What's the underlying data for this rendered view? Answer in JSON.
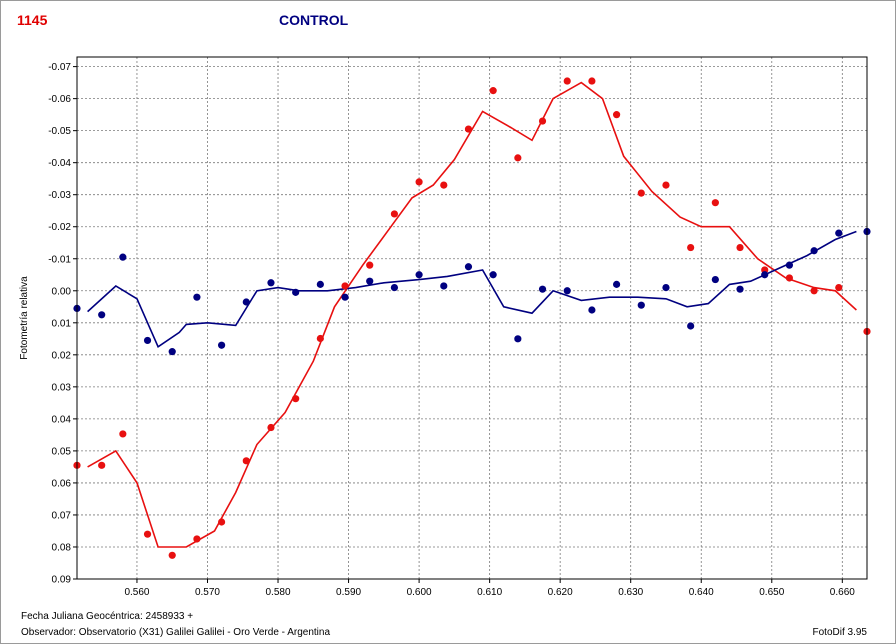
{
  "header": {
    "object_id": "1145",
    "mode": "CONTROL"
  },
  "footer": {
    "jd_label": "Fecha Juliana Geocéntrica: 2458933 +",
    "observer": "Observador: Observatorio (X31) Galilei Galilei - Oro Verde - Argentina",
    "software": "FotoDif 3.95"
  },
  "colors": {
    "target": "#e81010",
    "control": "#000080",
    "grid": "#7a7a7a"
  },
  "chart_data": {
    "type": "scatter",
    "ylabel": "Fotometría relativa",
    "xlim": [
      0.5515,
      0.6635
    ],
    "ylim": [
      -0.073,
      0.09
    ],
    "y_inverted": true,
    "grid": true,
    "xticks": [
      {
        "v": 0.56,
        "label": "0.560"
      },
      {
        "v": 0.57,
        "label": "0.570"
      },
      {
        "v": 0.58,
        "label": "0.580"
      },
      {
        "v": 0.59,
        "label": "0.590"
      },
      {
        "v": 0.6,
        "label": "0.600"
      },
      {
        "v": 0.61,
        "label": "0.610"
      },
      {
        "v": 0.62,
        "label": "0.620"
      },
      {
        "v": 0.63,
        "label": "0.630"
      },
      {
        "v": 0.64,
        "label": "0.640"
      },
      {
        "v": 0.65,
        "label": "0.650"
      },
      {
        "v": 0.66,
        "label": "0.660"
      }
    ],
    "yticks": [
      {
        "v": -0.07,
        "label": "-0.07"
      },
      {
        "v": -0.06,
        "label": "-0.06"
      },
      {
        "v": -0.05,
        "label": "-0.05"
      },
      {
        "v": -0.04,
        "label": "-0.04"
      },
      {
        "v": -0.03,
        "label": "-0.03"
      },
      {
        "v": -0.02,
        "label": "-0.02"
      },
      {
        "v": -0.01,
        "label": "-0.01"
      },
      {
        "v": 0.0,
        "label": "0.00"
      },
      {
        "v": 0.01,
        "label": "0.01"
      },
      {
        "v": 0.02,
        "label": "0.02"
      },
      {
        "v": 0.03,
        "label": "0.03"
      },
      {
        "v": 0.04,
        "label": "0.04"
      },
      {
        "v": 0.05,
        "label": "0.05"
      },
      {
        "v": 0.06,
        "label": "0.06"
      },
      {
        "v": 0.07,
        "label": "0.07"
      },
      {
        "v": 0.08,
        "label": "0.08"
      },
      {
        "v": 0.09,
        "label": "0.09"
      }
    ],
    "series": [
      {
        "color": "#e81010",
        "points": [
          [
            0.5515,
            0.0545
          ],
          [
            0.555,
            0.0545
          ],
          [
            0.558,
            0.0447
          ],
          [
            0.5615,
            0.076
          ],
          [
            0.565,
            0.0826
          ],
          [
            0.5685,
            0.0775
          ],
          [
            0.572,
            0.0722
          ],
          [
            0.5755,
            0.0531
          ],
          [
            0.579,
            0.0427
          ],
          [
            0.5825,
            0.0337
          ],
          [
            0.586,
            0.0149
          ],
          [
            0.5895,
            -0.0015
          ],
          [
            0.593,
            -0.008
          ],
          [
            0.5965,
            -0.024
          ],
          [
            0.6,
            -0.034
          ],
          [
            0.6035,
            -0.033
          ],
          [
            0.607,
            -0.0505
          ],
          [
            0.6105,
            -0.0625
          ],
          [
            0.614,
            -0.0415
          ],
          [
            0.6175,
            -0.053
          ],
          [
            0.621,
            -0.0655
          ],
          [
            0.6245,
            -0.0655
          ],
          [
            0.628,
            -0.055
          ],
          [
            0.6315,
            -0.0305
          ],
          [
            0.635,
            -0.033
          ],
          [
            0.6385,
            -0.0135
          ],
          [
            0.642,
            -0.0275
          ],
          [
            0.6455,
            -0.0135
          ],
          [
            0.649,
            -0.0065
          ],
          [
            0.6525,
            -0.004
          ],
          [
            0.656,
            0.0
          ],
          [
            0.6595,
            -0.001
          ],
          [
            0.6635,
            0.0127
          ]
        ],
        "trend": [
          [
            0.553,
            0.055
          ],
          [
            0.557,
            0.05
          ],
          [
            0.56,
            0.06
          ],
          [
            0.563,
            0.08
          ],
          [
            0.567,
            0.08
          ],
          [
            0.571,
            0.075
          ],
          [
            0.574,
            0.063
          ],
          [
            0.577,
            0.048
          ],
          [
            0.581,
            0.038
          ],
          [
            0.585,
            0.022
          ],
          [
            0.588,
            0.005
          ],
          [
            0.592,
            -0.008
          ],
          [
            0.596,
            -0.02
          ],
          [
            0.599,
            -0.029
          ],
          [
            0.602,
            -0.033
          ],
          [
            0.605,
            -0.041
          ],
          [
            0.609,
            -0.056
          ],
          [
            0.613,
            -0.051
          ],
          [
            0.616,
            -0.047
          ],
          [
            0.619,
            -0.06
          ],
          [
            0.623,
            -0.065
          ],
          [
            0.626,
            -0.06
          ],
          [
            0.629,
            -0.042
          ],
          [
            0.633,
            -0.031
          ],
          [
            0.637,
            -0.023
          ],
          [
            0.64,
            -0.02
          ],
          [
            0.644,
            -0.02
          ],
          [
            0.648,
            -0.01
          ],
          [
            0.652,
            -0.004
          ],
          [
            0.656,
            -0.001
          ],
          [
            0.659,
            0.0
          ],
          [
            0.662,
            0.006
          ]
        ]
      },
      {
        "color": "#000080",
        "points": [
          [
            0.5515,
            0.0055
          ],
          [
            0.555,
            0.0075
          ],
          [
            0.558,
            -0.0105
          ],
          [
            0.5615,
            0.0155
          ],
          [
            0.565,
            0.019
          ],
          [
            0.5685,
            0.002
          ],
          [
            0.572,
            0.017
          ],
          [
            0.5755,
            0.0035
          ],
          [
            0.579,
            -0.0025
          ],
          [
            0.5825,
            0.0005
          ],
          [
            0.586,
            -0.002
          ],
          [
            0.5895,
            0.002
          ],
          [
            0.593,
            -0.003
          ],
          [
            0.5965,
            -0.001
          ],
          [
            0.6,
            -0.005
          ],
          [
            0.6035,
            -0.0015
          ],
          [
            0.607,
            -0.0075
          ],
          [
            0.6105,
            -0.005
          ],
          [
            0.614,
            0.015
          ],
          [
            0.6175,
            -0.0005
          ],
          [
            0.621,
            0.0
          ],
          [
            0.6245,
            0.006
          ],
          [
            0.628,
            -0.002
          ],
          [
            0.6315,
            0.0045
          ],
          [
            0.635,
            -0.001
          ],
          [
            0.6385,
            0.011
          ],
          [
            0.642,
            -0.0035
          ],
          [
            0.6455,
            -0.0005
          ],
          [
            0.649,
            -0.005
          ],
          [
            0.6525,
            -0.008
          ],
          [
            0.656,
            -0.0125
          ],
          [
            0.6595,
            -0.018
          ],
          [
            0.6635,
            -0.0185
          ]
        ],
        "trend": [
          [
            0.553,
            0.0065
          ],
          [
            0.557,
            -0.0015
          ],
          [
            0.56,
            0.0025
          ],
          [
            0.563,
            0.0175
          ],
          [
            0.566,
            0.013
          ],
          [
            0.567,
            0.0105
          ],
          [
            0.57,
            0.01
          ],
          [
            0.574,
            0.0108
          ],
          [
            0.577,
            0.0
          ],
          [
            0.58,
            -0.001
          ],
          [
            0.583,
            0.0
          ],
          [
            0.587,
            0.0
          ],
          [
            0.591,
            -0.001
          ],
          [
            0.595,
            -0.0025
          ],
          [
            0.6,
            -0.0035
          ],
          [
            0.604,
            -0.0045
          ],
          [
            0.609,
            -0.0065
          ],
          [
            0.612,
            0.005
          ],
          [
            0.616,
            0.007
          ],
          [
            0.619,
            0.0
          ],
          [
            0.623,
            0.003
          ],
          [
            0.627,
            0.002
          ],
          [
            0.631,
            0.002
          ],
          [
            0.635,
            0.0025
          ],
          [
            0.638,
            0.005
          ],
          [
            0.641,
            0.004
          ],
          [
            0.644,
            -0.002
          ],
          [
            0.647,
            -0.003
          ],
          [
            0.651,
            -0.007
          ],
          [
            0.655,
            -0.011
          ],
          [
            0.659,
            -0.016
          ],
          [
            0.662,
            -0.0185
          ]
        ]
      }
    ]
  }
}
